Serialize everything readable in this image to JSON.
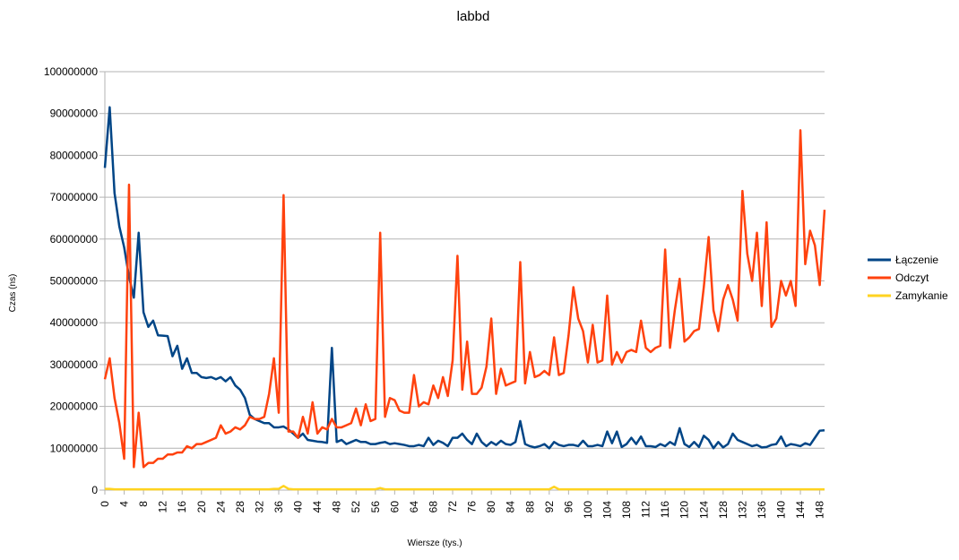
{
  "chart_data": {
    "type": "line",
    "title": "labbd",
    "xlabel": "Wiersze (tys.)",
    "ylabel": "Czas (ns)",
    "ylim": [
      0,
      100000000
    ],
    "yticks": [
      "0",
      "10000000",
      "20000000",
      "30000000",
      "40000000",
      "50000000",
      "60000000",
      "70000000",
      "80000000",
      "90000000",
      "100000000"
    ],
    "xticks": [
      "0",
      "4",
      "8",
      "12",
      "16",
      "20",
      "24",
      "28",
      "32",
      "36",
      "40",
      "44",
      "48",
      "52",
      "56",
      "60",
      "64",
      "68",
      "72",
      "76",
      "80",
      "84",
      "88",
      "92",
      "96",
      "100",
      "104",
      "108",
      "112",
      "116",
      "120",
      "124",
      "128",
      "132",
      "136",
      "140",
      "144",
      "148"
    ],
    "grid": true,
    "legend_position": "right",
    "x_start": 0,
    "x_end": 149,
    "series": [
      {
        "name": "Łączenie",
        "color": "#004586",
        "values": [
          77000000,
          91500000,
          71000000,
          63000000,
          58000000,
          51000000,
          46000000,
          61500000,
          42500000,
          39000000,
          40500000,
          37000000,
          36900000,
          36800000,
          32000000,
          34500000,
          29000000,
          31500000,
          28000000,
          28000000,
          27000000,
          26800000,
          27000000,
          26500000,
          27000000,
          26000000,
          27000000,
          25000000,
          24000000,
          22000000,
          18000000,
          17000000,
          16500000,
          16000000,
          16000000,
          15000000,
          15000000,
          15200000,
          14500000,
          13500000,
          12500000,
          13500000,
          12000000,
          11800000,
          11600000,
          11500000,
          11300000,
          34000000,
          11500000,
          12000000,
          11000000,
          11500000,
          12000000,
          11500000,
          11500000,
          11000000,
          11000000,
          11300000,
          11500000,
          11000000,
          11200000,
          11000000,
          10800000,
          10500000,
          10500000,
          10800000,
          10500000,
          12500000,
          10800000,
          11800000,
          11300000,
          10500000,
          12500000,
          12500000,
          13500000,
          12000000,
          11000000,
          13500000,
          11500000,
          10500000,
          11500000,
          10800000,
          11800000,
          11000000,
          10800000,
          11500000,
          16500000,
          11000000,
          10500000,
          10200000,
          10500000,
          11000000,
          10000000,
          11500000,
          10800000,
          10500000,
          10800000,
          10800000,
          10500000,
          11800000,
          10500000,
          10500000,
          10800000,
          10500000,
          14000000,
          11200000,
          14000000,
          10300000,
          11000000,
          12500000,
          11000000,
          12800000,
          10500000,
          10500000,
          10300000,
          11000000,
          10500000,
          11500000,
          10800000,
          14800000,
          11000000,
          10300000,
          11500000,
          10300000,
          13000000,
          12000000,
          10000000,
          11500000,
          10200000,
          11000000,
          13500000,
          12000000,
          11500000,
          11000000,
          10500000,
          10800000,
          10200000,
          10300000,
          10800000,
          11000000,
          12800000,
          10500000,
          11000000,
          10800000,
          10500000,
          11200000,
          10800000,
          12500000,
          14200000,
          14300000
        ]
      },
      {
        "name": "Odczyt",
        "color": "#ff420e",
        "values": [
          26500000,
          31500000,
          22000000,
          16000000,
          7500000,
          73000000,
          5500000,
          18500000,
          5500000,
          6500000,
          6500000,
          7500000,
          7500000,
          8500000,
          8500000,
          9000000,
          9000000,
          10500000,
          10000000,
          11000000,
          11000000,
          11500000,
          12000000,
          12500000,
          15500000,
          13500000,
          14000000,
          15000000,
          14500000,
          15500000,
          17500000,
          17000000,
          17000000,
          17500000,
          23000000,
          31500000,
          18500000,
          70500000,
          14000000,
          14000000,
          12500000,
          17500000,
          13500000,
          21000000,
          13500000,
          15000000,
          14500000,
          17000000,
          15000000,
          15000000,
          15500000,
          16000000,
          19500000,
          15500000,
          20500000,
          16500000,
          17000000,
          61500000,
          17500000,
          22000000,
          21500000,
          19000000,
          18500000,
          18500000,
          27500000,
          20000000,
          21000000,
          20500000,
          25000000,
          22000000,
          27000000,
          22500000,
          31000000,
          56000000,
          24000000,
          35500000,
          23000000,
          23000000,
          24500000,
          29500000,
          41000000,
          23000000,
          29000000,
          25000000,
          25500000,
          26000000,
          54500000,
          25500000,
          33000000,
          27000000,
          27500000,
          28500000,
          27500000,
          36500000,
          27500000,
          28000000,
          37000000,
          48500000,
          41000000,
          38000000,
          30500000,
          39500000,
          30500000,
          31000000,
          46500000,
          30000000,
          33000000,
          30500000,
          33000000,
          33500000,
          33000000,
          40500000,
          34000000,
          33000000,
          34000000,
          34500000,
          57500000,
          34000000,
          43000000,
          50500000,
          35500000,
          36500000,
          38000000,
          38500000,
          48500000,
          60500000,
          43000000,
          38000000,
          45500000,
          49000000,
          45500000,
          40500000,
          71500000,
          56500000,
          50000000,
          61500000,
          44000000,
          64000000,
          39000000,
          41000000,
          50000000,
          46500000,
          50000000,
          44000000,
          86000000,
          54000000,
          62000000,
          58500000,
          49000000,
          67000000
        ]
      },
      {
        "name": "Zamykanie",
        "color": "#ffd320",
        "values": [
          300000,
          300000,
          200000,
          200000,
          200000,
          200000,
          200000,
          200000,
          200000,
          200000,
          200000,
          200000,
          200000,
          200000,
          200000,
          200000,
          200000,
          200000,
          200000,
          200000,
          200000,
          200000,
          200000,
          200000,
          200000,
          200000,
          200000,
          200000,
          200000,
          200000,
          200000,
          200000,
          200000,
          200000,
          200000,
          300000,
          300000,
          1000000,
          300000,
          200000,
          200000,
          200000,
          200000,
          200000,
          200000,
          200000,
          200000,
          200000,
          200000,
          200000,
          200000,
          200000,
          200000,
          200000,
          200000,
          200000,
          200000,
          500000,
          200000,
          200000,
          200000,
          200000,
          200000,
          200000,
          200000,
          200000,
          200000,
          200000,
          200000,
          200000,
          200000,
          200000,
          200000,
          200000,
          200000,
          200000,
          200000,
          200000,
          200000,
          200000,
          200000,
          200000,
          200000,
          200000,
          200000,
          200000,
          200000,
          200000,
          200000,
          200000,
          200000,
          200000,
          200000,
          800000,
          200000,
          200000,
          200000,
          200000,
          200000,
          200000,
          200000,
          200000,
          200000,
          200000,
          200000,
          200000,
          200000,
          200000,
          200000,
          200000,
          200000,
          200000,
          200000,
          200000,
          200000,
          200000,
          200000,
          200000,
          200000,
          200000,
          200000,
          200000,
          200000,
          200000,
          200000,
          200000,
          200000,
          200000,
          200000,
          200000,
          200000,
          200000,
          200000,
          200000,
          200000,
          200000,
          200000,
          200000,
          200000,
          200000,
          200000,
          200000,
          200000,
          200000,
          200000,
          200000,
          200000,
          200000,
          200000,
          200000
        ]
      }
    ]
  }
}
